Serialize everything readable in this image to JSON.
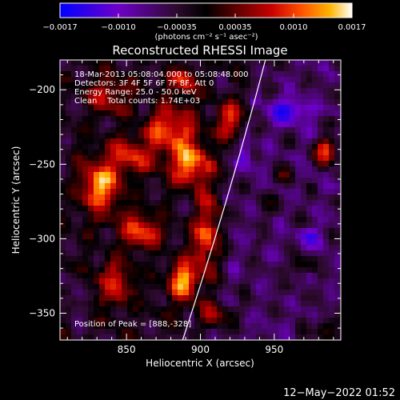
{
  "chart_data": {
    "type": "heatmap",
    "title": "Reconstructed RHESSI Image",
    "xlabel": "Heliocentric X (arcsec)",
    "ylabel": "Heliocentric Y (arcsec)",
    "xlim": [
      805,
      995
    ],
    "ylim": [
      -368,
      -180
    ],
    "x_ticks": [
      850,
      900,
      950
    ],
    "y_ticks": [
      -350,
      -300,
      -250,
      -200
    ],
    "x_tick_labels": [
      "850",
      "900",
      "950"
    ],
    "y_tick_labels": [
      "−350",
      "−300",
      "−250",
      "−200"
    ],
    "colorbar": {
      "range": [
        -0.0017,
        0.0017
      ],
      "tick_labels": [
        "−0.0017",
        "−0.0010",
        "−0.00035",
        "0.00035",
        "0.0010",
        "0.0017"
      ],
      "unit_label": "(photons cm⁻² s⁻¹ asec⁻²)",
      "colors": [
        "#0000ff",
        "#6a00c8",
        "#2a0a2a",
        "#000000",
        "#5a0000",
        "#c00000",
        "#ff5000",
        "#ffb000",
        "#ffffff"
      ]
    },
    "annotations": [
      "18-Mar-2013 05:08:04.000 to 05:08:48.000",
      "Detectors: 3F 4F 5F 6F 7F 8F, Att 0",
      "Energy Range: 25.0 - 50.0 keV",
      "Clean    Total counts: 1.74E+03"
    ],
    "peak_label": "Position of Peak = [888,-328]",
    "peak": [
      888,
      -328
    ],
    "limb": {
      "x_bottom": 888,
      "y_bottom": -368,
      "x_top": 944,
      "y_top": -180
    },
    "blobs": [
      {
        "x": 888,
        "y": -328,
        "sx": 9,
        "sy": 14,
        "v": 1.0
      },
      {
        "x": 892,
        "y": -249,
        "sx": 14,
        "sy": 15,
        "v": 0.92
      },
      {
        "x": 832,
        "y": -265,
        "sx": 14,
        "sy": 18,
        "v": 0.88
      },
      {
        "x": 860,
        "y": -295,
        "sx": 14,
        "sy": 12,
        "v": 0.7
      },
      {
        "x": 905,
        "y": -300,
        "sx": 9,
        "sy": 30,
        "v": 0.75
      },
      {
        "x": 880,
        "y": -225,
        "sx": 16,
        "sy": 13,
        "v": 0.75
      },
      {
        "x": 855,
        "y": -245,
        "sx": 16,
        "sy": 13,
        "v": 0.6
      },
      {
        "x": 838,
        "y": -205,
        "sx": 14,
        "sy": 12,
        "v": 0.55
      },
      {
        "x": 920,
        "y": -220,
        "sx": 9,
        "sy": 12,
        "v": 0.6
      },
      {
        "x": 842,
        "y": -330,
        "sx": 12,
        "sy": 16,
        "v": 0.6
      },
      {
        "x": 888,
        "y": -195,
        "sx": 9,
        "sy": 10,
        "v": 0.65
      },
      {
        "x": 908,
        "y": -352,
        "sx": 12,
        "sy": 10,
        "v": 0.6
      },
      {
        "x": 985,
        "y": -242,
        "sx": 8,
        "sy": 9,
        "v": 0.9
      },
      {
        "x": 968,
        "y": -318,
        "sx": 7,
        "sy": 6,
        "v": 0.4
      },
      {
        "x": 958,
        "y": -258,
        "sx": 6,
        "sy": 6,
        "v": 0.35
      },
      {
        "x": 985,
        "y": -360,
        "sx": 7,
        "sy": 7,
        "v": 0.4
      },
      {
        "x": 960,
        "y": -213,
        "sx": 14,
        "sy": 9,
        "v": -0.55
      },
      {
        "x": 930,
        "y": -245,
        "sx": 7,
        "sy": 10,
        "v": -0.35
      },
      {
        "x": 815,
        "y": -340,
        "sx": 7,
        "sy": 9,
        "v": -0.3
      },
      {
        "x": 975,
        "y": -300,
        "sx": 9,
        "sy": 8,
        "v": -0.35
      },
      {
        "x": 945,
        "y": -275,
        "sx": 6,
        "sy": 8,
        "v": 0.25
      }
    ]
  },
  "footer": {
    "timestamp": "12−May−2022 01:52"
  }
}
